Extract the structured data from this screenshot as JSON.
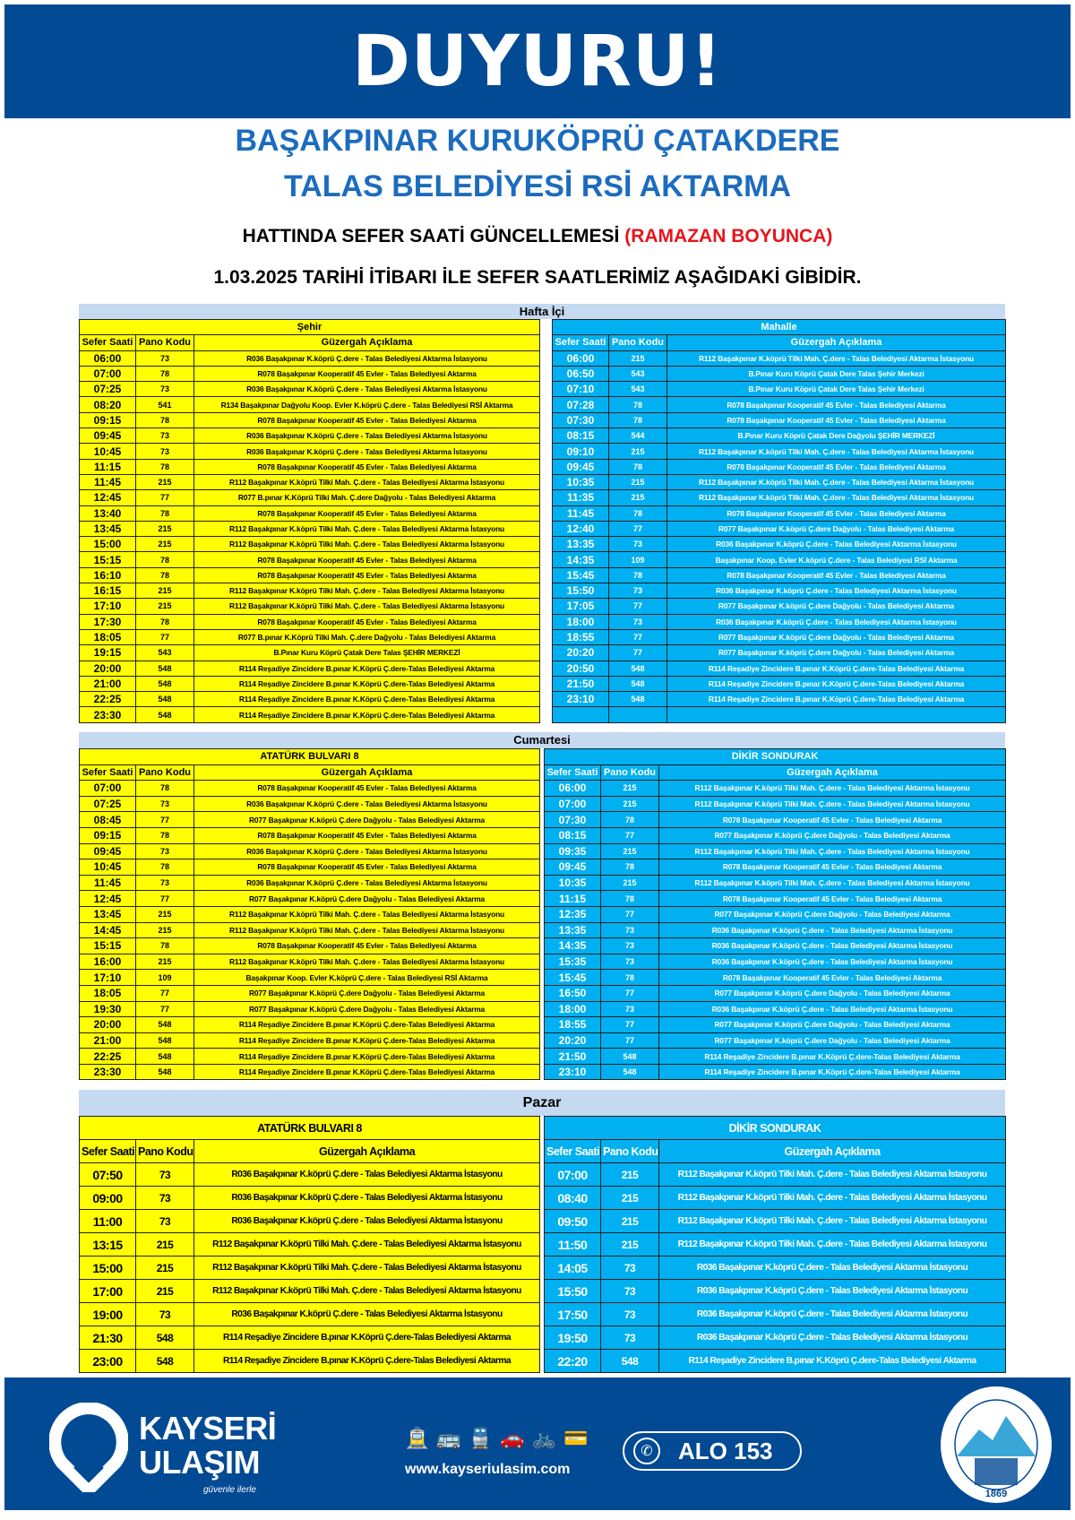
{
  "header": {
    "title": "DUYURU!",
    "line1": "BAŞAKPINAR KURUKÖPRÜ ÇATAKDERE",
    "line2": "TALAS BELEDİYESİ RSİ AKTARMA",
    "line3_main": "HATTINDA SEFER SAATİ GÜNCELLEMESİ ",
    "line3_highlight": "(RAMAZAN BOYUNCA)",
    "line4": "1.03.2025 TARİHİ İTİBARI İLE SEFER SAATLERİMİZ AŞAĞIDAKİ GİBİDİR."
  },
  "colors": {
    "band": "#034a94",
    "title_blue": "#1b6cbf",
    "highlight_red": "#e8141b",
    "left_table": "#ffff00",
    "right_table": "#00b0f0",
    "section_header": "#c5d9f1"
  },
  "columns": [
    "Sefer Saati",
    "Pano Kodu",
    "Güzergah Açıklama"
  ],
  "sections": [
    {
      "title": "Hafta İçi",
      "left": {
        "group": "Şehir",
        "rows": [
          [
            "06:00",
            "73",
            "R036 Başakpınar K.köprü Ç.dere - Talas Belediyesi Aktarma İstasyonu"
          ],
          [
            "07:00",
            "78",
            "R078 Başakpınar Kooperatif 45 Evler - Talas Belediyesi Aktarma"
          ],
          [
            "07:25",
            "73",
            "R036 Başakpınar K.köprü Ç.dere - Talas Belediyesi Aktarma İstasyonu"
          ],
          [
            "08:20",
            "541",
            "R134 Başakpınar Dağyolu Koop. Evler  K.köprü Ç.dere - Talas Belediyesi RSİ Aktarma"
          ],
          [
            "09:15",
            "78",
            "R078 Başakpınar Kooperatif 45 Evler - Talas Belediyesi Aktarma"
          ],
          [
            "09:45",
            "73",
            "R036 Başakpınar K.köprü Ç.dere - Talas Belediyesi Aktarma İstasyonu"
          ],
          [
            "10:45",
            "73",
            "R036 Başakpınar K.köprü Ç.dere - Talas Belediyesi Aktarma İstasyonu"
          ],
          [
            "11:15",
            "78",
            "R078 Başakpınar Kooperatif 45 Evler - Talas Belediyesi Aktarma"
          ],
          [
            "11:45",
            "215",
            "R112 Başakpınar K.köprü Tilki Mah. Ç.dere - Talas Belediyesi Aktarma İstasyonu"
          ],
          [
            "12:45",
            "77",
            "R077 B.pınar K.Köprü Tilki Mah. Ç.dere Dağyolu - Talas Belediyesi Aktarma"
          ],
          [
            "13:40",
            "78",
            "R078 Başakpınar Kooperatif 45 Evler - Talas Belediyesi Aktarma"
          ],
          [
            "13:45",
            "215",
            "R112 Başakpınar K.köprü Tilki Mah. Ç.dere - Talas Belediyesi Aktarma İstasyonu"
          ],
          [
            "15:00",
            "215",
            "R112 Başakpınar K.köprü Tilki Mah. Ç.dere - Talas Belediyesi Aktarma İstasyonu"
          ],
          [
            "15:15",
            "78",
            "R078 Başakpınar Kooperatif 45 Evler - Talas Belediyesi Aktarma"
          ],
          [
            "16:10",
            "78",
            "R078 Başakpınar Kooperatif 45 Evler - Talas Belediyesi Aktarma"
          ],
          [
            "16:15",
            "215",
            "R112 Başakpınar K.köprü Tilki Mah. Ç.dere - Talas Belediyesi Aktarma İstasyonu"
          ],
          [
            "17:10",
            "215",
            "R112 Başakpınar K.köprü Tilki Mah. Ç.dere - Talas Belediyesi Aktarma İstasyonu"
          ],
          [
            "17:30",
            "78",
            "R078 Başakpınar Kooperatif 45 Evler - Talas Belediyesi Aktarma"
          ],
          [
            "18:05",
            "77",
            "R077 B.pınar K.Köprü Tilki Mah. Ç.dere Dağyolu - Talas Belediyesi Aktarma"
          ],
          [
            "19:15",
            "543",
            "B.Pınar Kuru Köprü Çatak Dere Talas ŞEHİR MERKEZİ"
          ],
          [
            "20:00",
            "548",
            "R114 Reşadiye Zincidere B.pınar  K.Köprü Ç.dere-Talas Belediyesi Aktarma"
          ],
          [
            "21:00",
            "548",
            "R114 Reşadiye Zincidere B.pınar  K.Köprü Ç.dere-Talas Belediyesi Aktarma"
          ],
          [
            "22:25",
            "548",
            "R114 Reşadiye Zincidere B.pınar  K.Köprü Ç.dere-Talas Belediyesi Aktarma"
          ],
          [
            "23:30",
            "548",
            "R114 Reşadiye Zincidere B.pınar  K.Köprü Ç.dere-Talas Belediyesi Aktarma"
          ]
        ]
      },
      "right": {
        "group": "Mahalle",
        "rows": [
          [
            "06:00",
            "215",
            "R112 Başakpınar K.köprü Tilki Mah. Ç.dere - Talas Belediyesi Aktarma İstasyonu"
          ],
          [
            "06:50",
            "543",
            "B.Pınar Kuru Köprü Çatak Dere Talas Şehir Merkezi"
          ],
          [
            "07:10",
            "543",
            "B.Pınar Kuru Köprü Çatak Dere Talas Şehir Merkezi"
          ],
          [
            "07:28",
            "78",
            "R078 Başakpınar Kooperatif 45 Evler - Talas Belediyesi Aktarma"
          ],
          [
            "07:30",
            "78",
            "R078 Başakpınar Kooperatif 45 Evler - Talas Belediyesi Aktarma"
          ],
          [
            "08:15",
            "544",
            "B.Pınar Kuru Köprü Çatak Dere Dağyolu ŞEHİR MERKEZİ"
          ],
          [
            "09:10",
            "215",
            "R112 Başakpınar K.köprü Tilki Mah. Ç.dere - Talas Belediyesi Aktarma İstasyonu"
          ],
          [
            "09:45",
            "78",
            "R078 Başakpınar Kooperatif 45 Evler - Talas Belediyesi Aktarma"
          ],
          [
            "10:35",
            "215",
            "R112 Başakpınar K.köprü Tilki Mah. Ç.dere - Talas Belediyesi Aktarma İstasyonu"
          ],
          [
            "11:35",
            "215",
            "R112 Başakpınar K.köprü Tilki Mah. Ç.dere - Talas Belediyesi Aktarma İstasyonu"
          ],
          [
            "11:45",
            "78",
            "R078 Başakpınar Kooperatif 45 Evler - Talas Belediyesi Aktarma"
          ],
          [
            "12:40",
            "77",
            "R077 Başakpınar K.köprü Ç.dere Dağyolu - Talas Belediyesi Aktarma"
          ],
          [
            "13:35",
            "73",
            "R036 Başakpınar K.köprü Ç.dere - Talas Belediyesi Aktarma İstasyonu"
          ],
          [
            "14:35",
            "109",
            "Başakpınar Koop. Evler  K.köprü Ç.dere - Talas Belediyesi RSİ Aktarma"
          ],
          [
            "15:45",
            "78",
            "R078 Başakpınar Kooperatif 45 Evler - Talas Belediyesi Aktarma"
          ],
          [
            "15:50",
            "73",
            "R036 Başakpınar K.köprü Ç.dere - Talas Belediyesi Aktarma İstasyonu"
          ],
          [
            "17:05",
            "77",
            "R077 Başakpınar K.köprü Ç.dere Dağyolu - Talas Belediyesi Aktarma"
          ],
          [
            "18:00",
            "73",
            "R036 Başakpınar K.köprü Ç.dere - Talas Belediyesi Aktarma İstasyonu"
          ],
          [
            "18:55",
            "77",
            "R077 Başakpınar K.köprü Ç.dere Dağyolu - Talas Belediyesi Aktarma"
          ],
          [
            "20:20",
            "77",
            "R077 Başakpınar K.köprü Ç.dere Dağyolu - Talas Belediyesi Aktarma"
          ],
          [
            "20:50",
            "548",
            "R114 Reşadiye Zincidere B.pınar  K.Köprü Ç.dere-Talas Belediyesi Aktarma"
          ],
          [
            "21:50",
            "548",
            "R114 Reşadiye Zincidere B.pınar  K.Köprü Ç.dere-Talas Belediyesi Aktarma"
          ],
          [
            "23:10",
            "548",
            "R114 Reşadiye Zincidere B.pınar  K.Köprü Ç.dere-Talas Belediyesi Aktarma"
          ],
          [
            "",
            "",
            ""
          ]
        ]
      }
    },
    {
      "title": "Cumartesi",
      "left": {
        "group": "ATATÜRK BULVARI 8",
        "rows": [
          [
            "07:00",
            "78",
            "R078 Başakpınar Kooperatif 45 Evler - Talas Belediyesi Aktarma"
          ],
          [
            "07:25",
            "73",
            "R036 Başakpınar K.köprü Ç.dere - Talas Belediyesi Aktarma İstasyonu"
          ],
          [
            "08:45",
            "77",
            "R077 Başakpınar K.köprü Ç.dere Dağyolu - Talas Belediyesi Aktarma"
          ],
          [
            "09:15",
            "78",
            "R078 Başakpınar Kooperatif 45 Evler - Talas Belediyesi Aktarma"
          ],
          [
            "09:45",
            "73",
            "R036 Başakpınar K.köprü Ç.dere - Talas Belediyesi Aktarma İstasyonu"
          ],
          [
            "10:45",
            "78",
            "R078 Başakpınar Kooperatif 45 Evler - Talas Belediyesi Aktarma"
          ],
          [
            "11:45",
            "73",
            "R036 Başakpınar K.köprü Ç.dere - Talas Belediyesi Aktarma İstasyonu"
          ],
          [
            "12:45",
            "77",
            "R077 Başakpınar K.köprü Ç.dere Dağyolu - Talas Belediyesi Aktarma"
          ],
          [
            "13:45",
            "215",
            "R112 Başakpınar K.köprü Tilki Mah. Ç.dere - Talas Belediyesi Aktarma İstasyonu"
          ],
          [
            "14:45",
            "215",
            "R112 Başakpınar K.köprü Tilki Mah. Ç.dere - Talas Belediyesi Aktarma İstasyonu"
          ],
          [
            "15:15",
            "78",
            "R078 Başakpınar Kooperatif 45 Evler - Talas Belediyesi Aktarma"
          ],
          [
            "16:00",
            "215",
            "R112 Başakpınar K.köprü Tilki Mah. Ç.dere - Talas Belediyesi Aktarma İstasyonu"
          ],
          [
            "17:10",
            "109",
            "Başakpınar Koop. Evler  K.köprü Ç.dere - Talas Belediyesi RSİ Aktarma"
          ],
          [
            "18:05",
            "77",
            "R077 Başakpınar K.köprü Ç.dere Dağyolu - Talas Belediyesi Aktarma"
          ],
          [
            "19:30",
            "77",
            "R077 Başakpınar K.köprü Ç.dere Dağyolu - Talas Belediyesi Aktarma"
          ],
          [
            "20:00",
            "548",
            "R114 Reşadiye Zincidere B.pınar  K.Köprü Ç.dere-Talas Belediyesi Aktarma"
          ],
          [
            "21:00",
            "548",
            "R114 Reşadiye Zincidere B.pınar  K.Köprü Ç.dere-Talas Belediyesi Aktarma"
          ],
          [
            "22:25",
            "548",
            "R114 Reşadiye Zincidere B.pınar  K.Köprü Ç.dere-Talas Belediyesi Aktarma"
          ],
          [
            "23:30",
            "548",
            "R114 Reşadiye Zincidere B.pınar  K.Köprü Ç.dere-Talas Belediyesi Aktarma"
          ]
        ]
      },
      "right": {
        "group": "DİKİR SONDURAK",
        "rows": [
          [
            "06:00",
            "215",
            "R112 Başakpınar K.köprü Tilki Mah. Ç.dere - Talas Belediyesi Aktarma İstasyonu"
          ],
          [
            "07:00",
            "215",
            "R112 Başakpınar K.köprü Tilki Mah. Ç.dere - Talas Belediyesi Aktarma İstasyonu"
          ],
          [
            "07:30",
            "78",
            "R078 Başakpınar Kooperatif 45 Evler - Talas Belediyesi Aktarma"
          ],
          [
            "08:15",
            "77",
            "R077 Başakpınar K.köprü Ç.dere Dağyolu - Talas Belediyesi Aktarma"
          ],
          [
            "09:35",
            "215",
            "R112 Başakpınar K.köprü Tilki Mah. Ç.dere - Talas Belediyesi Aktarma İstasyonu"
          ],
          [
            "09:45",
            "78",
            "R078 Başakpınar Kooperatif 45 Evler - Talas Belediyesi Aktarma"
          ],
          [
            "10:35",
            "215",
            "R112 Başakpınar K.köprü Tilki Mah. Ç.dere - Talas Belediyesi Aktarma İstasyonu"
          ],
          [
            "11:15",
            "78",
            "R078 Başakpınar Kooperatif 45 Evler - Talas Belediyesi Aktarma"
          ],
          [
            "12:35",
            "77",
            "R077 Başakpınar K.köprü Ç.dere Dağyolu - Talas Belediyesi Aktarma"
          ],
          [
            "13:35",
            "73",
            "R036 Başakpınar K.köprü Ç.dere - Talas Belediyesi Aktarma İstasyonu"
          ],
          [
            "14:35",
            "73",
            "R036 Başakpınar K.köprü Ç.dere - Talas Belediyesi Aktarma İstasyonu"
          ],
          [
            "15:35",
            "73",
            "R036 Başakpınar K.köprü Ç.dere - Talas Belediyesi Aktarma İstasyonu"
          ],
          [
            "15:45",
            "78",
            "R078 Başakpınar Kooperatif 45 Evler - Talas Belediyesi Aktarma"
          ],
          [
            "16:50",
            "77",
            "R077 Başakpınar K.köprü Ç.dere Dağyolu - Talas Belediyesi Aktarma"
          ],
          [
            "18:00",
            "73",
            "R036 Başakpınar K.köprü Ç.dere - Talas Belediyesi Aktarma İstasyonu"
          ],
          [
            "18:55",
            "77",
            "R077 Başakpınar K.köprü Ç.dere Dağyolu - Talas Belediyesi Aktarma"
          ],
          [
            "20:20",
            "77",
            "R077 Başakpınar K.köprü Ç.dere Dağyolu - Talas Belediyesi Aktarma"
          ],
          [
            "21:50",
            "548",
            "R114 Reşadiye Zincidere B.pınar  K.Köprü Ç.dere-Talas Belediyesi Aktarma"
          ],
          [
            "23:10",
            "548",
            "R114 Reşadiye Zincidere B.pınar  K.Köprü Ç.dere-Talas Belediyesi Aktarma"
          ]
        ]
      }
    },
    {
      "title": "Pazar",
      "left": {
        "group": "ATATÜRK BULVARI 8",
        "rows": [
          [
            "07:50",
            "73",
            "R036 Başakpınar K.köprü Ç.dere - Talas Belediyesi Aktarma İstasyonu"
          ],
          [
            "09:00",
            "73",
            "R036 Başakpınar K.köprü Ç.dere - Talas Belediyesi Aktarma İstasyonu"
          ],
          [
            "11:00",
            "73",
            "R036 Başakpınar K.köprü Ç.dere - Talas Belediyesi Aktarma İstasyonu"
          ],
          [
            "13:15",
            "215",
            "R112 Başakpınar K.köprü Tilki Mah. Ç.dere - Talas Belediyesi Aktarma İstasyonu"
          ],
          [
            "15:00",
            "215",
            "R112 Başakpınar K.köprü Tilki Mah. Ç.dere - Talas Belediyesi Aktarma İstasyonu"
          ],
          [
            "17:00",
            "215",
            "R112 Başakpınar K.köprü Tilki Mah. Ç.dere - Talas Belediyesi Aktarma İstasyonu"
          ],
          [
            "19:00",
            "73",
            "R036 Başakpınar K.köprü Ç.dere - Talas Belediyesi Aktarma İstasyonu"
          ],
          [
            "21:30",
            "548",
            "R114 Reşadiye Zincidere B.pınar  K.Köprü Ç.dere-Talas Belediyesi Aktarma"
          ],
          [
            "23:00",
            "548",
            "R114 Reşadiye Zincidere B.pınar  K.Köprü Ç.dere-Talas Belediyesi Aktarma"
          ]
        ]
      },
      "right": {
        "group": "DİKİR SONDURAK",
        "rows": [
          [
            "07:00",
            "215",
            "R112 Başakpınar K.köprü Tilki Mah. Ç.dere - Talas Belediyesi Aktarma İstasyonu"
          ],
          [
            "08:40",
            "215",
            "R112 Başakpınar K.köprü Tilki Mah. Ç.dere - Talas Belediyesi Aktarma İstasyonu"
          ],
          [
            "09:50",
            "215",
            "R112 Başakpınar K.köprü Tilki Mah. Ç.dere - Talas Belediyesi Aktarma İstasyonu"
          ],
          [
            "11:50",
            "215",
            "R112 Başakpınar K.köprü Tilki Mah. Ç.dere - Talas Belediyesi Aktarma İstasyonu"
          ],
          [
            "14:05",
            "73",
            "R036 Başakpınar K.köprü Ç.dere - Talas Belediyesi Aktarma İstasyonu"
          ],
          [
            "15:50",
            "73",
            "R036 Başakpınar K.köprü Ç.dere - Talas Belediyesi Aktarma İstasyonu"
          ],
          [
            "17:50",
            "73",
            "R036 Başakpınar K.köprü Ç.dere - Talas Belediyesi Aktarma İstasyonu"
          ],
          [
            "19:50",
            "73",
            "R036 Başakpınar K.köprü Ç.dere - Talas Belediyesi Aktarma İstasyonu"
          ],
          [
            "22:20",
            "548",
            "R114 Reşadiye Zincidere B.pınar  K.Köprü Ç.dere-Talas Belediyesi Aktarma"
          ]
        ]
      }
    }
  ],
  "footer": {
    "brand_line1": "KAYSERİ",
    "brand_line2": "ULAŞIM",
    "slogan": "güvenle ilerle",
    "service_icons": [
      "tram-icon",
      "bus-icon",
      "train-icon",
      "park-and-ride-icon",
      "bicycle-icon",
      "contactless-card-icon"
    ],
    "website": "www.kayseriulasim.com",
    "hotline": "ALO 153",
    "seal_text": "KAYSERİ BÜYÜKŞEHİR BELEDİYESİ",
    "seal_year": "1869"
  }
}
